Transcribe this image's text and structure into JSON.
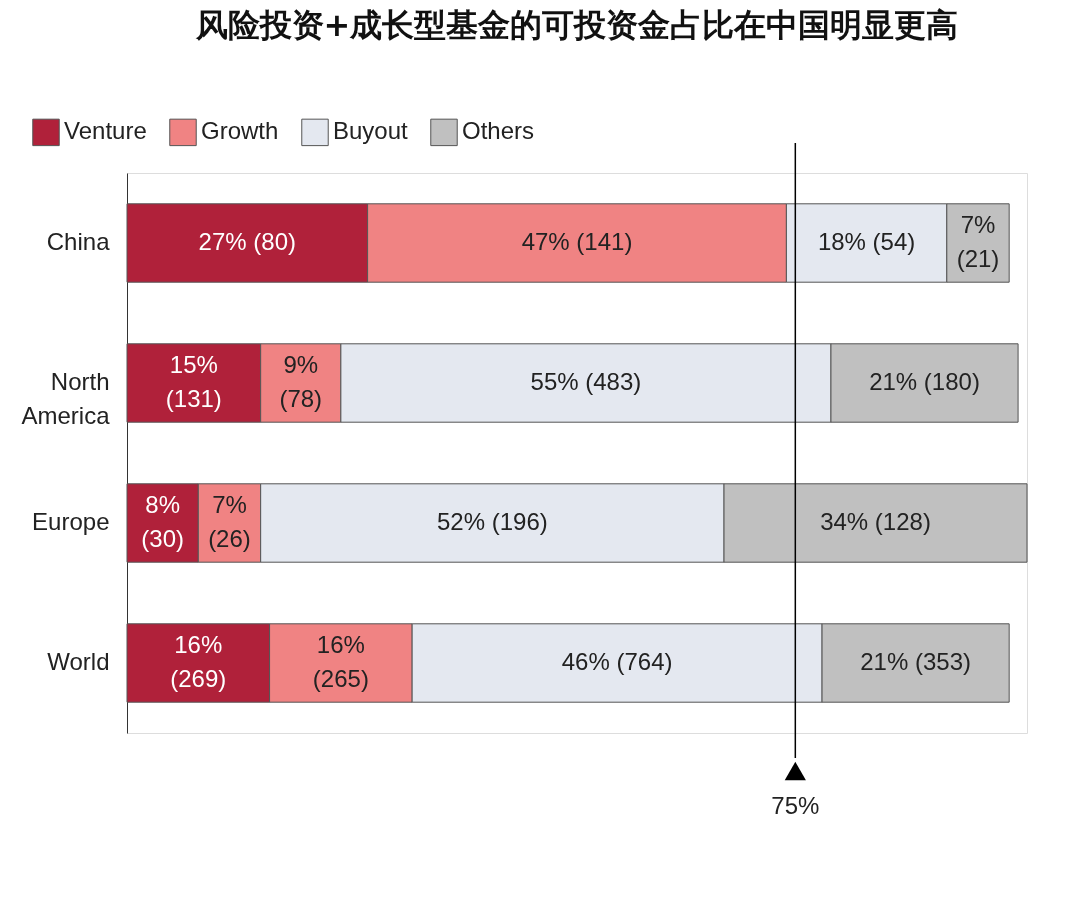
{
  "chart_data": {
    "type": "bar",
    "orientation": "horizontal",
    "stacked": true,
    "title": "风险投资+成长型基金的可投资金占比在中国明显更高",
    "categories": [
      "China",
      "North America",
      "Europe",
      "World"
    ],
    "xlim": [
      0,
      101
    ],
    "tick_labels": "y",
    "legend": "top left",
    "grid": false,
    "series": [
      {
        "name": "Venture",
        "color": "#b0213a",
        "values": [
          27,
          15,
          8,
          16
        ],
        "value_labels": [
          "27% (80)",
          "15% (131)",
          "8% (30)",
          "16% (269)"
        ]
      },
      {
        "name": "Growth",
        "color": "#f08383",
        "values": [
          47,
          9,
          7,
          16
        ],
        "value_labels": [
          "47% (141)",
          "9% (78)",
          "7% (26)",
          "16% (265)"
        ]
      },
      {
        "name": "Buyout",
        "color": "#e4e8f0",
        "values": [
          18,
          55,
          52,
          46
        ],
        "value_labels": [
          "18% (54)",
          "55% (483)",
          "52% (196)",
          "46% (764)"
        ]
      },
      {
        "name": "Others",
        "color": "#c0c0c0",
        "values": [
          7,
          21,
          34,
          21
        ],
        "value_labels": [
          "7% (21)",
          "21% (180)",
          "34% (128)",
          "21% (353)"
        ]
      }
    ],
    "ref_lines": [
      {
        "axis": "x",
        "value": 75,
        "label": "75%",
        "color": "#000000"
      }
    ]
  }
}
